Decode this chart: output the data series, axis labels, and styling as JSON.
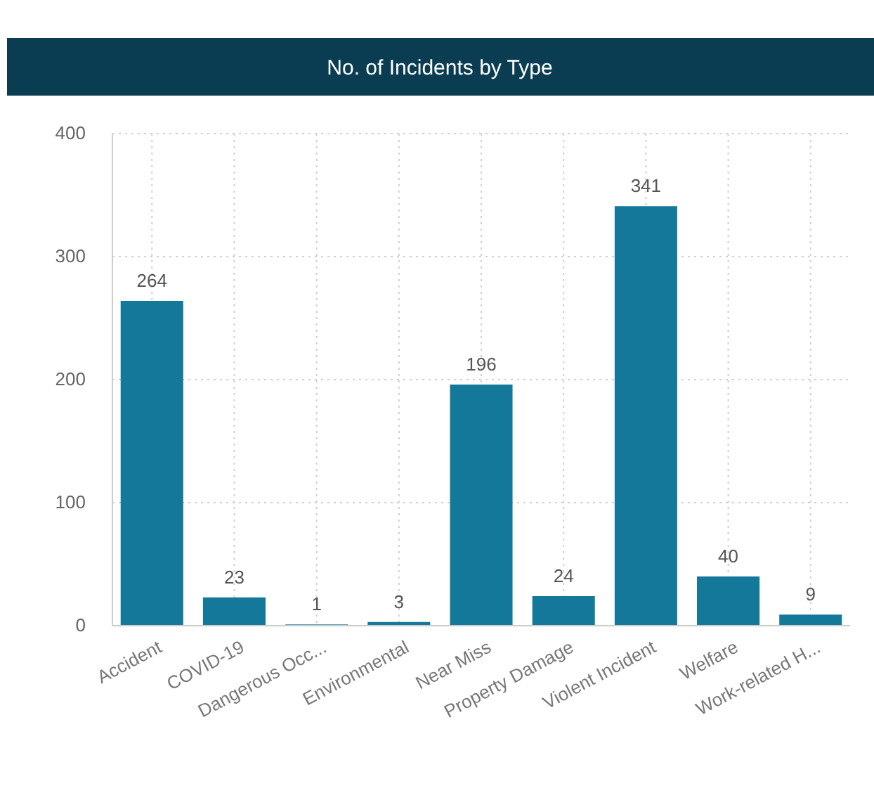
{
  "chart_data": {
    "type": "bar",
    "title": "No. of Incidents by Type",
    "categories": [
      "Accident",
      "COVID-19",
      "Dangerous Occ...",
      "Environmental",
      "Near Miss",
      "Property Damage",
      "Violent Incident",
      "Welfare",
      "Work-related H..."
    ],
    "values": [
      264,
      23,
      1,
      3,
      196,
      24,
      341,
      40,
      9
    ],
    "color": "#13789a",
    "ylim": [
      0,
      400
    ],
    "yticks": [
      0,
      100,
      200,
      300,
      400
    ],
    "grid": true,
    "data_labels": true
  }
}
